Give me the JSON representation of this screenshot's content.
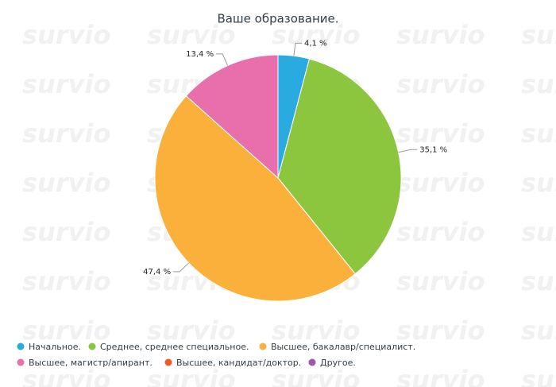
{
  "watermark": "survio",
  "chart_data": {
    "type": "pie",
    "title": "Ваше образование.",
    "categories": [
      "Начальное.",
      "Среднее, среднее специальное.",
      "Высшее, бакалавр/специалист.",
      "Высшее, магистр/апирант.",
      "Высшее, кандидат/доктор.",
      "Другое."
    ],
    "values": [
      4.1,
      35.1,
      47.4,
      13.4,
      0,
      0
    ],
    "value_labels": [
      "4,1 %",
      "35,1 %",
      "47,4 %",
      "13,4 %",
      null,
      null
    ],
    "colors": [
      "#29abe2",
      "#8cc63f",
      "#fbb03b",
      "#e86fac",
      "#f15a24",
      "#9e57a8"
    ]
  }
}
